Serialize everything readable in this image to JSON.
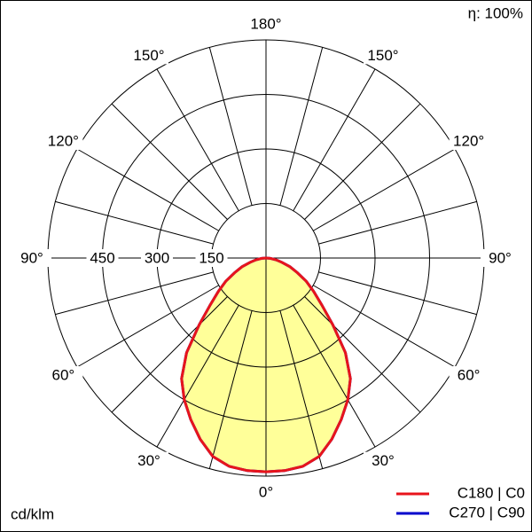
{
  "chart_data": {
    "type": "polar-line",
    "top_note": "η: 100%",
    "unit_label": "cd/klm",
    "x": [
      -90,
      -85,
      -80,
      -75,
      -70,
      -65,
      -60,
      -55,
      -50,
      -45,
      -40,
      -35,
      -30,
      -25,
      -20,
      -15,
      -10,
      -5,
      0,
      5,
      10,
      15,
      20,
      25,
      30,
      35,
      40,
      45,
      50,
      55,
      60,
      65,
      70,
      75,
      80,
      85,
      90
    ],
    "series": [
      {
        "name": "C270 | C90",
        "color": "#0000cc",
        "values": [
          0,
          12,
          28,
          45,
          70,
          95,
          128,
          160,
          200,
          260,
          340,
          405,
          450,
          490,
          530,
          565,
          582,
          587,
          588,
          587,
          582,
          565,
          530,
          490,
          450,
          405,
          340,
          260,
          200,
          160,
          128,
          95,
          70,
          45,
          28,
          12,
          0
        ]
      },
      {
        "name": "C180 | C0",
        "color": "#e8141b",
        "fill": "#ffff99",
        "values": [
          0,
          12,
          28,
          45,
          70,
          95,
          128,
          160,
          200,
          260,
          340,
          405,
          450,
          490,
          530,
          565,
          582,
          587,
          588,
          587,
          582,
          565,
          530,
          490,
          450,
          405,
          340,
          260,
          200,
          160,
          128,
          95,
          70,
          45,
          28,
          12,
          0
        ]
      }
    ],
    "rlim": [
      0,
      600
    ],
    "rticks": [
      150,
      300,
      450
    ],
    "angle_ticks": [
      {
        "value": 0,
        "label": "0°"
      },
      {
        "value": 30,
        "label": "30°"
      },
      {
        "value": 60,
        "label": "60°"
      },
      {
        "value": 90,
        "label": "90°"
      },
      {
        "value": 120,
        "label": "120°"
      },
      {
        "value": 150,
        "label": "150°"
      },
      {
        "value": 180,
        "label": "180°"
      }
    ],
    "grid": true
  }
}
